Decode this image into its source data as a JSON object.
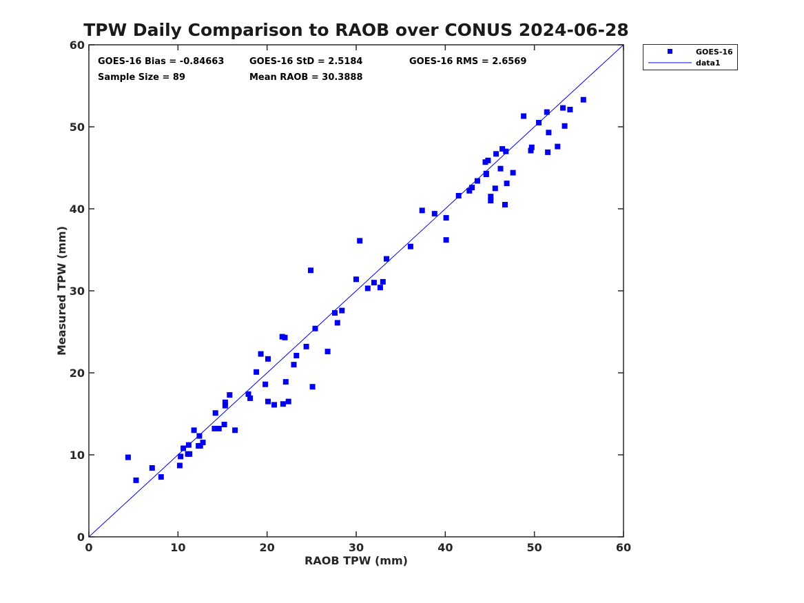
{
  "chart_data": {
    "type": "scatter",
    "title": "TPW Daily Comparison to RAOB over CONUS 2024-06-28",
    "xlabel": "RAOB TPW (mm)",
    "ylabel": "Measured TPW (mm)",
    "xlim": [
      0,
      60
    ],
    "ylim": [
      0,
      60
    ],
    "xticks": [
      "0",
      "10",
      "20",
      "30",
      "40",
      "50",
      "60"
    ],
    "yticks": [
      "0",
      "10",
      "20",
      "30",
      "40",
      "50",
      "60"
    ],
    "grid": false,
    "legend_position": "outside-top-right",
    "colors": {
      "points": "#0000ee",
      "line": "#0000ee",
      "axis": "#262626"
    },
    "stats": {
      "bias": "GOES-16 Bias = -0.84663",
      "std": "GOES-16 StD = 2.5184",
      "rms": "GOES-16 RMS = 2.6569",
      "sample": "Sample Size = 89",
      "mean": "Mean RAOB = 30.3888"
    },
    "series": [
      {
        "name": "GOES-16",
        "marker": "square",
        "points": [
          [
            4.4,
            9.7
          ],
          [
            5.3,
            6.9
          ],
          [
            7.1,
            8.4
          ],
          [
            8.1,
            7.3
          ],
          [
            10.2,
            8.7
          ],
          [
            10.3,
            9.8
          ],
          [
            10.6,
            10.8
          ],
          [
            11.1,
            10.1
          ],
          [
            11.2,
            11.2
          ],
          [
            11.3,
            10.1
          ],
          [
            11.8,
            13.0
          ],
          [
            12.3,
            11.1
          ],
          [
            12.4,
            12.3
          ],
          [
            12.5,
            11.1
          ],
          [
            12.8,
            11.5
          ],
          [
            14.1,
            13.2
          ],
          [
            14.2,
            15.1
          ],
          [
            14.6,
            13.2
          ],
          [
            15.2,
            13.7
          ],
          [
            15.3,
            16.0
          ],
          [
            15.3,
            16.4
          ],
          [
            15.8,
            17.3
          ],
          [
            16.4,
            13.0
          ],
          [
            17.9,
            17.4
          ],
          [
            18.1,
            16.9
          ],
          [
            18.8,
            20.1
          ],
          [
            19.3,
            22.3
          ],
          [
            19.8,
            18.6
          ],
          [
            20.1,
            16.5
          ],
          [
            20.1,
            21.7
          ],
          [
            20.8,
            16.1
          ],
          [
            21.7,
            24.4
          ],
          [
            21.8,
            16.2
          ],
          [
            22.0,
            24.3
          ],
          [
            22.1,
            18.9
          ],
          [
            22.4,
            16.5
          ],
          [
            23.0,
            21.0
          ],
          [
            23.3,
            22.1
          ],
          [
            24.4,
            23.2
          ],
          [
            24.9,
            32.5
          ],
          [
            25.1,
            18.3
          ],
          [
            25.4,
            25.4
          ],
          [
            26.8,
            22.6
          ],
          [
            27.6,
            27.3
          ],
          [
            27.9,
            26.1
          ],
          [
            28.4,
            27.6
          ],
          [
            30.0,
            31.4
          ],
          [
            30.4,
            36.1
          ],
          [
            31.3,
            30.3
          ],
          [
            32.0,
            31.0
          ],
          [
            32.7,
            30.4
          ],
          [
            33.0,
            31.1
          ],
          [
            33.4,
            33.9
          ],
          [
            36.1,
            35.4
          ],
          [
            37.4,
            39.8
          ],
          [
            38.8,
            39.4
          ],
          [
            40.1,
            38.9
          ],
          [
            40.1,
            36.2
          ],
          [
            41.5,
            41.6
          ],
          [
            42.7,
            42.2
          ],
          [
            43.0,
            42.6
          ],
          [
            43.6,
            43.4
          ],
          [
            44.5,
            45.7
          ],
          [
            44.6,
            44.2
          ],
          [
            44.6,
            44.3
          ],
          [
            44.8,
            45.9
          ],
          [
            45.1,
            41.0
          ],
          [
            45.1,
            41.5
          ],
          [
            45.6,
            42.5
          ],
          [
            45.7,
            46.7
          ],
          [
            46.2,
            44.9
          ],
          [
            46.4,
            47.3
          ],
          [
            46.7,
            40.5
          ],
          [
            46.8,
            47.0
          ],
          [
            46.9,
            43.1
          ],
          [
            47.6,
            44.4
          ],
          [
            48.8,
            51.3
          ],
          [
            49.6,
            47.1
          ],
          [
            49.7,
            47.5
          ],
          [
            50.5,
            50.5
          ],
          [
            51.4,
            51.8
          ],
          [
            51.5,
            46.9
          ],
          [
            51.6,
            49.3
          ],
          [
            52.6,
            47.6
          ],
          [
            53.2,
            52.3
          ],
          [
            53.4,
            50.1
          ],
          [
            54.0,
            52.1
          ],
          [
            55.5,
            53.3
          ]
        ]
      },
      {
        "name": "data1",
        "marker": "line",
        "points": [
          [
            0,
            0
          ],
          [
            60,
            60
          ]
        ]
      }
    ]
  }
}
